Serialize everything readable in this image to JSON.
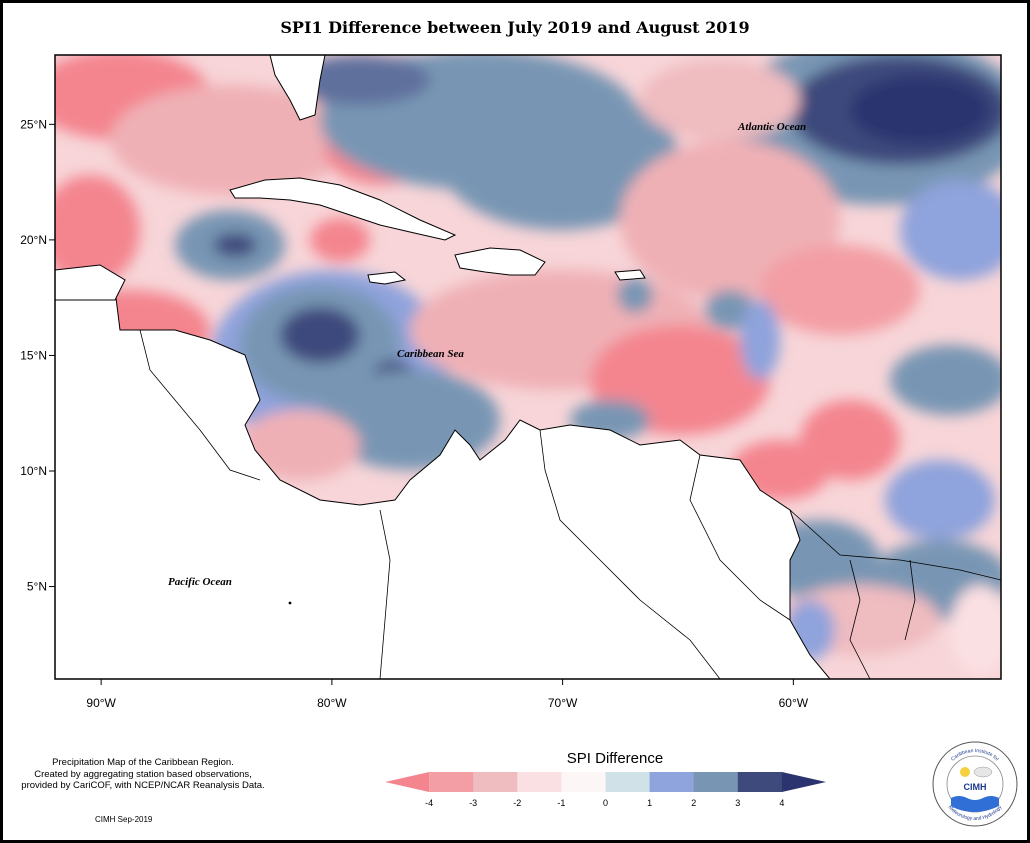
{
  "title": "SPI1 Difference between July 2019 and August 2019",
  "map": {
    "lon_range": [
      -92,
      -51
    ],
    "lat_range": [
      1,
      28
    ],
    "x_ticks": [
      {
        "lon": -90,
        "label": "90°W"
      },
      {
        "lon": -80,
        "label": "80°W"
      },
      {
        "lon": -70,
        "label": "70°W"
      },
      {
        "lon": -60,
        "label": "60°W"
      }
    ],
    "y_ticks": [
      {
        "lat": 25,
        "label": "25°N"
      },
      {
        "lat": 20,
        "label": "20°N"
      },
      {
        "lat": 15,
        "label": "15°N"
      },
      {
        "lat": 10,
        "label": "10°N"
      },
      {
        "lat": 5,
        "label": "5°N"
      }
    ],
    "labels": {
      "atlantic": "Atlantic Ocean",
      "caribbean": "Caribbean Sea",
      "pacific": "Pacific Ocean"
    }
  },
  "legend": {
    "title": "SPI Difference",
    "ticks": [
      "-4",
      "-3",
      "-2",
      "-1",
      "0",
      "1",
      "2",
      "3",
      "4"
    ],
    "colors": [
      "#f4858f",
      "#f39ea4",
      "#efbcc0",
      "#fbe0e3",
      "#fdf6f6",
      "#d0e2e8",
      "#8fa3dc",
      "#7896b4",
      "#3e4a7c",
      "#2c3470"
    ]
  },
  "caption": {
    "line1": "Precipitation Map of the Caribbean Region.",
    "line2": "Created by aggregating station based observations,",
    "line3": "provided by CariCOF, with NCEP/NCAR Reanalysis Data."
  },
  "credit": "CIMH Sep-2019",
  "logo": {
    "top_text": "Caribbean Institute for",
    "bottom_text": "Meteorology and Hydrology",
    "center_text": "CIMH"
  }
}
